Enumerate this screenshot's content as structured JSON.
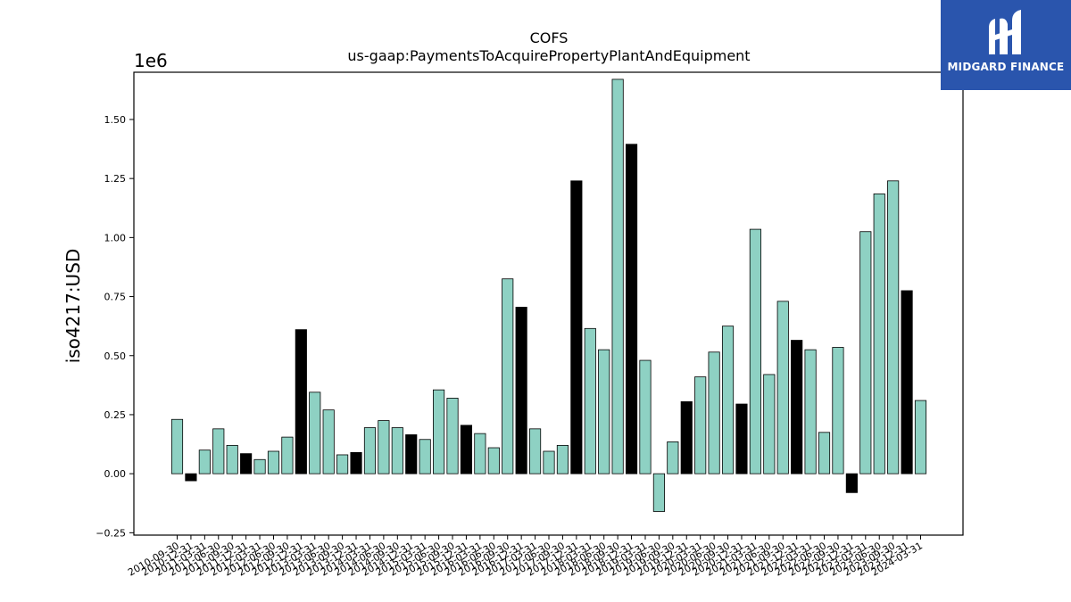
{
  "chart_data": {
    "type": "bar",
    "title": "COFS",
    "subtitle": "us-gaap:PaymentsToAcquirePropertyPlantAndEquipment",
    "ylabel": "iso4217:USD",
    "y_exponent_label": "1e6",
    "ylim": [
      -0.26,
      1.7
    ],
    "yticks": [
      -0.25,
      0.0,
      0.25,
      0.5,
      0.75,
      1.0,
      1.25,
      1.5
    ],
    "ytick_labels": [
      "−0.25",
      "0.00",
      "0.25",
      "0.50",
      "0.75",
      "1.00",
      "1.25",
      "1.50"
    ],
    "colors": {
      "quarter": "#8ed1c3",
      "annual": "#000000",
      "edge": "#000000"
    },
    "categories": [
      "2010-09-30",
      "2010-12-31",
      "2011-03-31",
      "2011-06-30",
      "2011-09-30",
      "2011-12-31",
      "2012-03-31",
      "2012-06-30",
      "2012-09-30",
      "2012-12-31",
      "2013-03-31",
      "2013-06-30",
      "2013-09-30",
      "2013-12-31",
      "2014-03-31",
      "2014-06-30",
      "2014-09-30",
      "2014-12-31",
      "2015-03-31",
      "2015-06-30",
      "2015-09-30",
      "2015-12-31",
      "2016-03-31",
      "2016-06-30",
      "2016-09-30",
      "2016-12-31",
      "2017-03-31",
      "2017-06-30",
      "2017-09-30",
      "2017-12-31",
      "2018-03-31",
      "2018-06-30",
      "2018-09-30",
      "2018-12-31",
      "2019-03-31",
      "2019-06-30",
      "2019-09-30",
      "2019-12-31",
      "2020-03-31",
      "2020-06-30",
      "2020-09-30",
      "2020-12-31",
      "2021-03-31",
      "2021-06-30",
      "2021-09-30",
      "2021-12-31",
      "2022-03-31",
      "2022-06-30",
      "2022-09-30",
      "2022-12-31",
      "2023-03-31",
      "2023-06-30",
      "2023-09-30",
      "2023-12-31",
      "2024-03-31"
    ],
    "values": [
      0.23,
      -0.03,
      0.1,
      0.19,
      0.12,
      0.085,
      0.06,
      0.095,
      0.155,
      0.61,
      0.345,
      0.27,
      0.08,
      0.09,
      0.195,
      0.225,
      0.195,
      0.165,
      0.145,
      0.355,
      0.32,
      0.205,
      0.17,
      0.11,
      0.825,
      0.705,
      0.19,
      0.095,
      0.12,
      1.24,
      0.615,
      0.525,
      1.67,
      1.395,
      0.48,
      -0.16,
      0.135,
      0.305,
      0.41,
      0.515,
      0.625,
      0.295,
      1.035,
      0.42,
      0.73,
      0.565,
      0.525,
      0.175,
      0.535,
      -0.08,
      1.025,
      1.185,
      1.24,
      0.775,
      0.31
    ],
    "annual": [
      false,
      true,
      false,
      false,
      false,
      true,
      false,
      false,
      false,
      true,
      false,
      false,
      false,
      true,
      false,
      false,
      false,
      true,
      false,
      false,
      false,
      true,
      false,
      false,
      false,
      true,
      false,
      false,
      false,
      true,
      false,
      false,
      false,
      true,
      false,
      false,
      false,
      true,
      false,
      false,
      false,
      true,
      false,
      false,
      false,
      true,
      false,
      false,
      false,
      true,
      false,
      false,
      false,
      true,
      false
    ],
    "legend": "none",
    "grid": false
  },
  "logo": {
    "text": "MIDGARD FINANCE",
    "background": "#2a55ad"
  }
}
